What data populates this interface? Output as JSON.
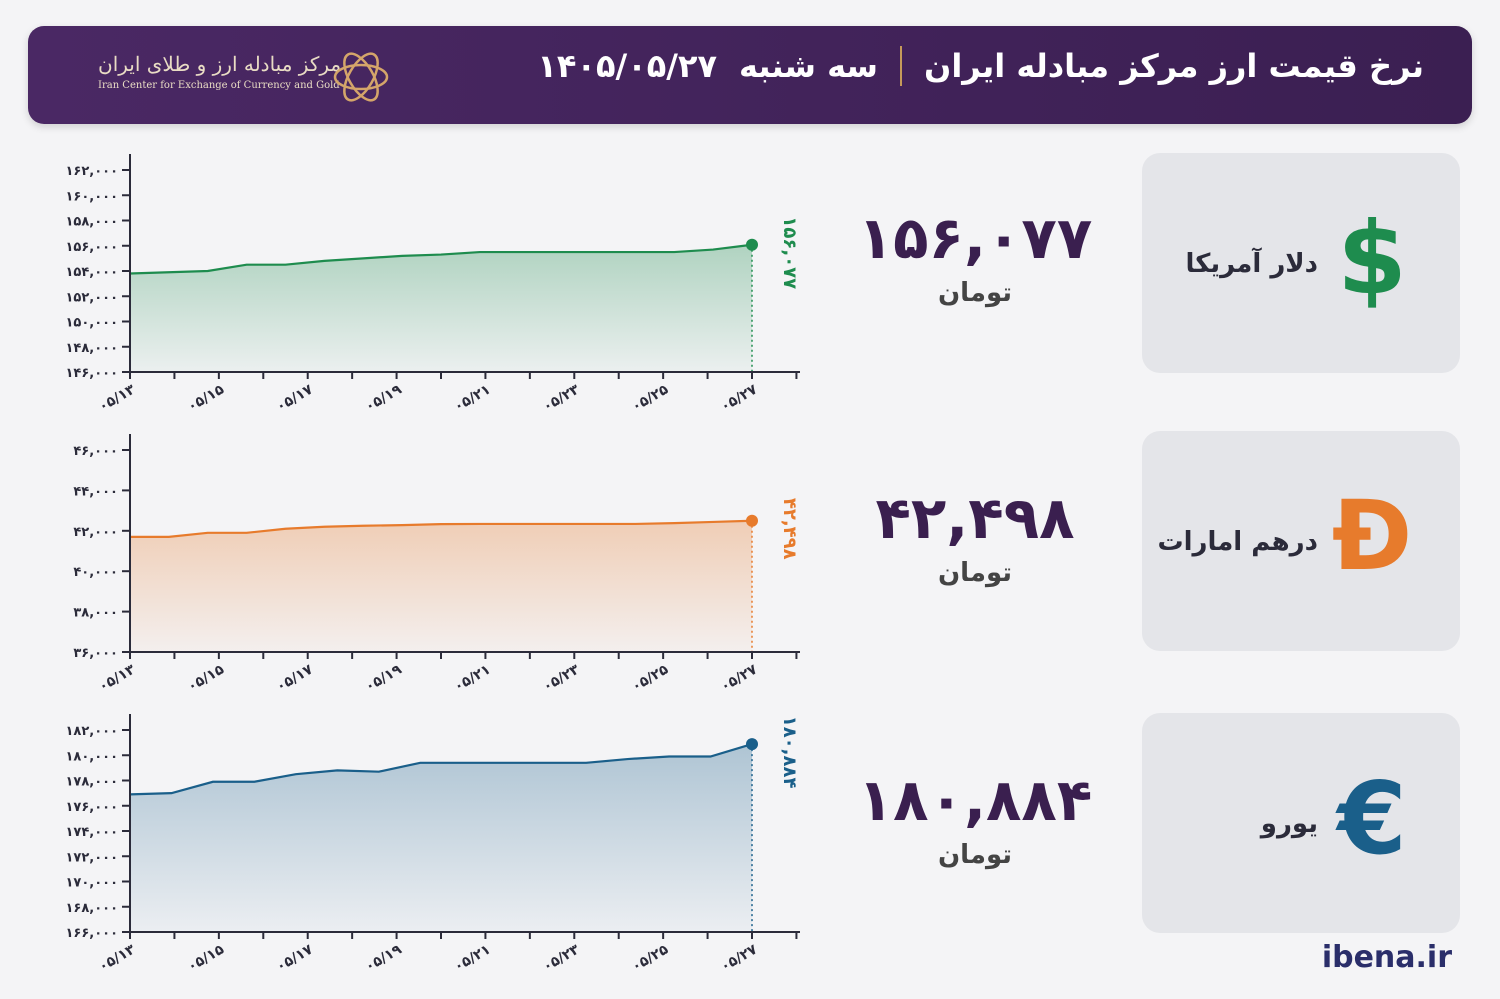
{
  "header": {
    "title": "نرخ قیمت ارز مرکز مبادله ایران",
    "day": "سه شنبه",
    "date": "۱۴۰۵/۰۵/۲۷",
    "logo_fa": "مرکز مبادله ارز و طلای ایران",
    "logo_en": "Iran Center for Exchange of Currency and Gold"
  },
  "footer": {
    "site": "ibena.ir"
  },
  "cards": [
    {
      "name": "دلار آمریکا",
      "icon": "dollar-icon",
      "glyph": "$",
      "color": "#1e8c4e",
      "price": "۱۵۶,۰۷۷",
      "unit": "تومان"
    },
    {
      "name": "درهم امارات",
      "icon": "dirham-icon",
      "glyph": "Đ",
      "color": "#e77b2c",
      "price": "۴۲,۴۹۸",
      "unit": "تومان"
    },
    {
      "name": "یورو",
      "icon": "euro-icon",
      "glyph": "€",
      "color": "#1a5f8a",
      "price": "۱۸۰,۸۸۴",
      "unit": "تومان"
    }
  ],
  "chart_data": [
    {
      "type": "area",
      "series": [
        {
          "values": [
            153800,
            153900,
            154000,
            154500,
            154500,
            154800,
            155000,
            155200,
            155300,
            155500,
            155500,
            155500,
            155500,
            155500,
            155500,
            155700,
            156077
          ]
        }
      ],
      "x_ticks": [
        "۰۵/۱۳",
        "۰۵/۱۵",
        "۰۵/۱۷",
        "۰۵/۱۹",
        "۰۵/۲۱",
        "۰۵/۲۳",
        "۰۵/۲۵",
        "۰۵/۲۷"
      ],
      "y_ticks": [
        "۱۶۲,۰۰۰",
        "۱۶۰,۰۰۰",
        "۱۵۸,۰۰۰",
        "۱۵۶,۰۰۰",
        "۱۵۴,۰۰۰",
        "۱۵۲,۰۰۰",
        "۱۵۰,۰۰۰",
        "۱۴۸,۰۰۰",
        "۱۴۶,۰۰۰"
      ],
      "ylim": [
        146000,
        162000
      ],
      "last_label": "۱۵۶,۰۷۷",
      "color": "#1e8c4e"
    },
    {
      "type": "area",
      "series": [
        {
          "values": [
            41700,
            41700,
            41900,
            41900,
            42100,
            42200,
            42250,
            42280,
            42330,
            42340,
            42340,
            42340,
            42340,
            42340,
            42380,
            42440,
            42498
          ]
        }
      ],
      "x_ticks": [
        "۰۵/۱۳",
        "۰۵/۱۵",
        "۰۵/۱۷",
        "۰۵/۱۹",
        "۰۵/۲۱",
        "۰۵/۲۳",
        "۰۵/۲۵",
        "۰۵/۲۷"
      ],
      "y_ticks": [
        "۴۶,۰۰۰",
        "۴۴,۰۰۰",
        "۴۲,۰۰۰",
        "۴۰,۰۰۰",
        "۳۸,۰۰۰",
        "۳۶,۰۰۰"
      ],
      "ylim": [
        36000,
        46000
      ],
      "last_label": "۴۲,۴۹۸",
      "color": "#e77b2c"
    },
    {
      "type": "area",
      "series": [
        {
          "values": [
            176900,
            177000,
            177900,
            177900,
            178500,
            178800,
            178700,
            179400,
            179400,
            179400,
            179400,
            179400,
            179700,
            179900,
            179900,
            180884
          ]
        }
      ],
      "x_ticks": [
        "۰۵/۱۳",
        "۰۵/۱۵",
        "۰۵/۱۷",
        "۰۵/۱۹",
        "۰۵/۲۱",
        "۰۵/۲۳",
        "۰۵/۲۵",
        "۰۵/۲۷"
      ],
      "y_ticks": [
        "۱۸۲,۰۰۰",
        "۱۸۰,۰۰۰",
        "۱۷۸,۰۰۰",
        "۱۷۶,۰۰۰",
        "۱۷۴,۰۰۰",
        "۱۷۲,۰۰۰",
        "۱۷۰,۰۰۰",
        "۱۶۸,۰۰۰",
        "۱۶۶,۰۰۰"
      ],
      "ylim": [
        166000,
        182000
      ],
      "last_label": "۱۸۰,۸۸۴",
      "color": "#1a5f8a"
    }
  ]
}
